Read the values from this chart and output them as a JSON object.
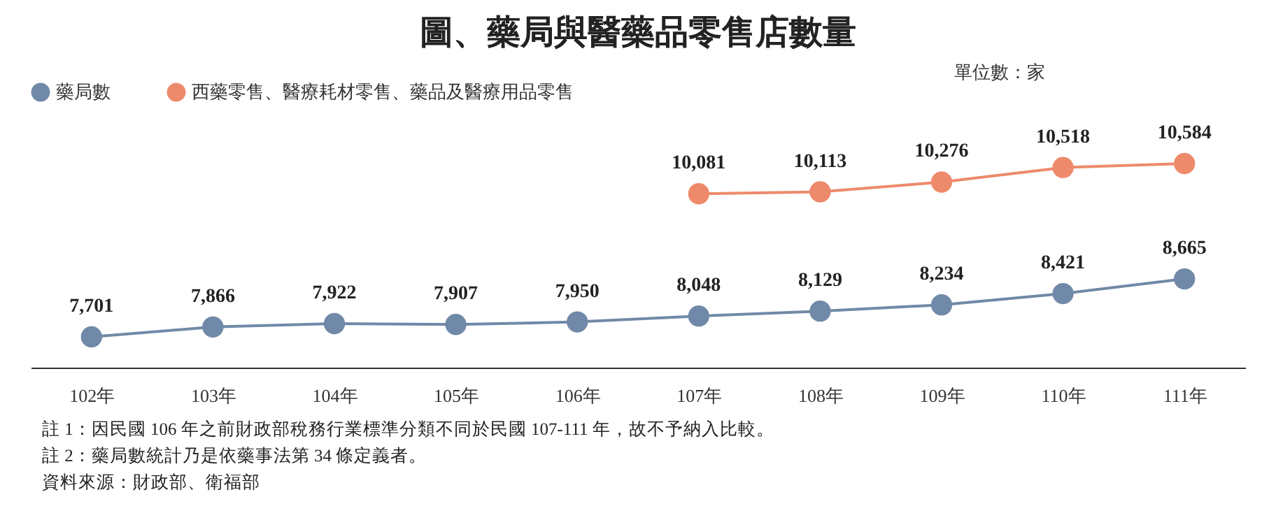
{
  "chart_data": {
    "type": "line",
    "title": "圖、藥局與醫藥品零售店數量",
    "categories": [
      "102年",
      "103年",
      "104年",
      "105年",
      "106年",
      "107年",
      "108年",
      "109年",
      "110年",
      "111年"
    ],
    "series": [
      {
        "name": "藥局數",
        "color": "#7189a8",
        "values": [
          7701,
          7866,
          7922,
          7907,
          7950,
          8048,
          8129,
          8234,
          8421,
          8665
        ],
        "value_labels": [
          "7,701",
          "7,866",
          "7,922",
          "7,907",
          "7,950",
          "8,048",
          "8,129",
          "8,234",
          "8,421",
          "8,665"
        ]
      },
      {
        "name": "西藥零售、醫療耗材零售、藥品及醫療用品零售",
        "color": "#ee8a6c",
        "values": [
          null,
          null,
          null,
          null,
          null,
          10081,
          10113,
          10276,
          10518,
          10584
        ],
        "value_labels": [
          null,
          null,
          null,
          null,
          null,
          "10,081",
          "10,113",
          "10,276",
          "10,518",
          "10,584"
        ]
      }
    ],
    "tick_labels": "x",
    "marker": "circle",
    "line_style": "solid",
    "grid": false,
    "legend": "top",
    "annotations": [
      "單位數：家",
      "註 1：因民國 106 年之前財政部稅務行業標準分類不同於民國 107-111 年，故不予納入比較。",
      "註 2：藥局數統計乃是依藥事法第 34 條定義者。",
      "資料來源：財政部、衛福部"
    ]
  }
}
